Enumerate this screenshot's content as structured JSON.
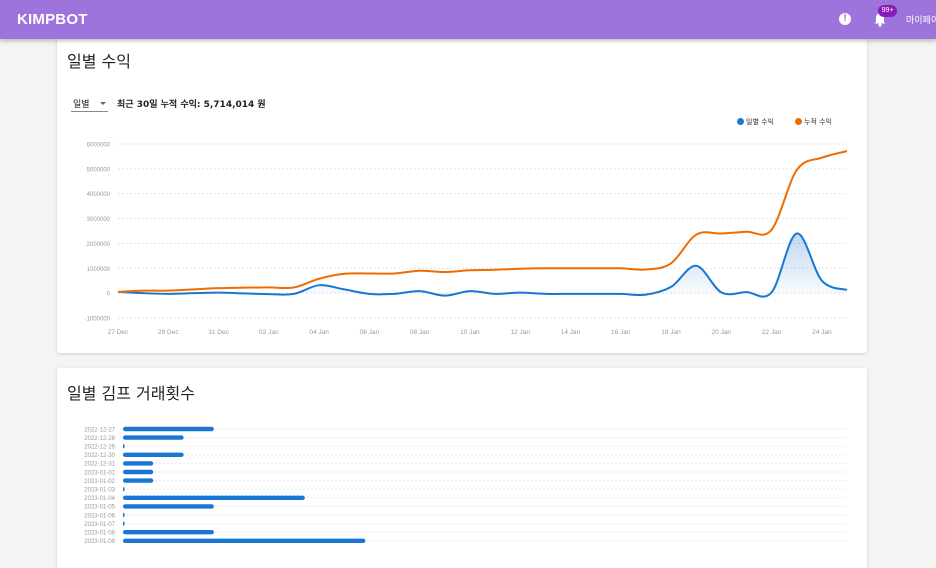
{
  "app": {
    "brand": "KIMPBOT",
    "alert_icon": "!",
    "badge": "99+",
    "mypage": "마이페이지"
  },
  "card1": {
    "title": "일별 수익",
    "period_select": "일별",
    "summary": "최근 30일 누적 수익: 5,714,014 원",
    "legend": [
      {
        "label": "일별 수익",
        "color": "#1976d2"
      },
      {
        "label": "누적 수익",
        "color": "#ef6c00"
      }
    ]
  },
  "card2": {
    "title": "일별 김프 거래횟수"
  },
  "chart_data": [
    {
      "type": "line",
      "title": "",
      "x_ticks": [
        "27 Dec",
        "29 Dec",
        "31 Dec",
        "02 Jan",
        "04 Jan",
        "06 Jan",
        "08 Jan",
        "10 Jan",
        "12 Jan",
        "14 Jan",
        "16 Jan",
        "18 Jan",
        "20 Jan",
        "22 Jan",
        "24 Jan"
      ],
      "y_ticks": [
        -1000000,
        0,
        1000000,
        2000000,
        3000000,
        4000000,
        5000000,
        6000000
      ],
      "ylim": [
        -1000000,
        6000000
      ],
      "grid": true,
      "legend_position": "top-right",
      "x": [
        "27 Dec",
        "28 Dec",
        "29 Dec",
        "30 Dec",
        "31 Dec",
        "01 Jan",
        "02 Jan",
        "03 Jan",
        "04 Jan",
        "05 Jan",
        "06 Jan",
        "07 Jan",
        "08 Jan",
        "09 Jan",
        "10 Jan",
        "11 Jan",
        "12 Jan",
        "13 Jan",
        "14 Jan",
        "15 Jan",
        "16 Jan",
        "17 Jan",
        "18 Jan",
        "19 Jan",
        "20 Jan",
        "21 Jan",
        "22 Jan",
        "23 Jan",
        "24 Jan",
        "25 Jan"
      ],
      "series": [
        {
          "name": "일별 수익",
          "color": "#1976d2",
          "area": true,
          "values": [
            50000,
            0,
            -30000,
            0,
            20000,
            -10000,
            -40000,
            -30000,
            320000,
            150000,
            -30000,
            -30000,
            80000,
            -100000,
            80000,
            -30000,
            20000,
            -30000,
            -30000,
            -30000,
            -30000,
            -60000,
            250000,
            1100000,
            30000,
            40000,
            30000,
            2400000,
            500000,
            130000
          ]
        },
        {
          "name": "누적 수익",
          "color": "#ef6c00",
          "area": false,
          "values": [
            50000,
            100000,
            100000,
            150000,
            200000,
            220000,
            230000,
            230000,
            580000,
            780000,
            790000,
            790000,
            900000,
            850000,
            920000,
            940000,
            980000,
            1000000,
            1000000,
            1000000,
            1000000,
            950000,
            1200000,
            2350000,
            2400000,
            2470000,
            2550000,
            4950000,
            5450000,
            5714014
          ]
        }
      ]
    },
    {
      "type": "bar",
      "orientation": "horizontal",
      "title": "",
      "grid": true,
      "categories": [
        "2022-12-27",
        "2022-12-28",
        "2022-12-29",
        "2022-12-30",
        "2022-12-31",
        "2023-01-01",
        "2023-01-02",
        "2023-01-03",
        "2023-01-04",
        "2023-01-05",
        "2023-01-06",
        "2023-01-07",
        "2023-01-08",
        "2023-01-09"
      ],
      "values": [
        3,
        2,
        0,
        2,
        1,
        1,
        1,
        0,
        6,
        3,
        0,
        0,
        3,
        8
      ],
      "color": "#1976d2"
    }
  ]
}
